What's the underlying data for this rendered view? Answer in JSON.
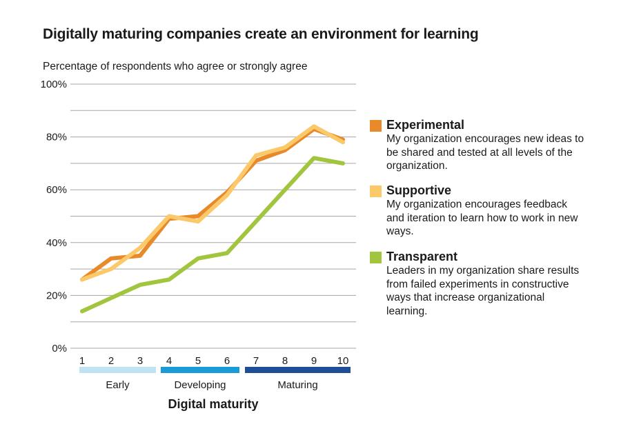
{
  "title": "Digitally maturing companies create an environment for learning",
  "subtitle": "Percentage of respondents who agree or strongly agree",
  "chart_data": {
    "type": "line",
    "title": "Digitally maturing companies create an environment for learning",
    "subtitle": "Percentage of respondents who agree or strongly agree",
    "xlabel": "Digital maturity",
    "ylabel": "",
    "x": [
      1,
      2,
      3,
      4,
      5,
      6,
      7,
      8,
      9,
      10
    ],
    "y_ticks": [
      "0%",
      "20%",
      "40%",
      "60%",
      "80%",
      "100%"
    ],
    "ylim": [
      0,
      100
    ],
    "grid": true,
    "legend_position": "right",
    "groups": [
      {
        "label": "Early",
        "from": 1,
        "to": 3,
        "color": "#bfe3f2"
      },
      {
        "label": "Developing",
        "from": 4,
        "to": 6,
        "color": "#1a9ad6"
      },
      {
        "label": "Maturing",
        "from": 7,
        "to": 10,
        "color": "#1f4e96"
      }
    ],
    "series": [
      {
        "name": "Experimental",
        "color": "#e8892a",
        "values": [
          26,
          34,
          35,
          49,
          50,
          59,
          71,
          75,
          83,
          79
        ]
      },
      {
        "name": "Supportive",
        "color": "#fbc96a",
        "values": [
          26,
          30,
          38,
          50,
          48,
          58,
          73,
          76,
          84,
          78
        ]
      },
      {
        "name": "Transparent",
        "color": "#a2c53f",
        "values": [
          14,
          19,
          24,
          26,
          34,
          36,
          48,
          60,
          72,
          70
        ]
      }
    ]
  },
  "legend": [
    {
      "name": "Experimental",
      "color": "#e8892a",
      "desc": "My organization encourages new ideas to be shared and tested at all levels of the organization."
    },
    {
      "name": "Supportive",
      "color": "#fbc96a",
      "desc": "My organization encourages feedback and iteration to learn how to work in new ways."
    },
    {
      "name": "Transparent",
      "color": "#a2c53f",
      "desc": "Leaders in my organization share results from failed experiments in constructive ways that increase organizational learning."
    }
  ]
}
